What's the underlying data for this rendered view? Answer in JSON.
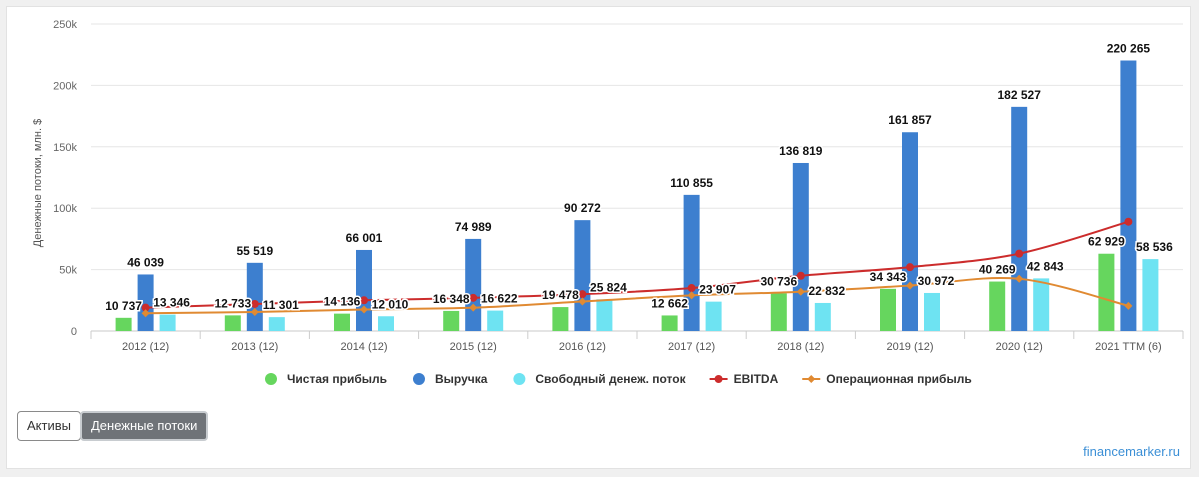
{
  "chart_data": {
    "type": "bar",
    "ylabel": "Денежные потоки, млн. $",
    "ylim": [
      0,
      250000
    ],
    "yticks": [
      {
        "value": 0,
        "label": "0"
      },
      {
        "value": 50000,
        "label": "50k"
      },
      {
        "value": 100000,
        "label": "100k"
      },
      {
        "value": 150000,
        "label": "150k"
      },
      {
        "value": 200000,
        "label": "200k"
      },
      {
        "value": 250000,
        "label": "250k"
      }
    ],
    "grid": true,
    "legend_position": "bottom",
    "categories": [
      "2012 (12)",
      "2013 (12)",
      "2014 (12)",
      "2015 (12)",
      "2016 (12)",
      "2017 (12)",
      "2018 (12)",
      "2019 (12)",
      "2020 (12)",
      "2021 TTM (6)"
    ],
    "series": [
      {
        "name": "Чистая прибыль",
        "kind": "bar",
        "color": "#66d65e",
        "values": [
          10737,
          12733,
          14136,
          16348,
          19478,
          12662,
          30736,
          34343,
          40269,
          62929
        ],
        "labels": [
          "10 737",
          "12 733",
          "14 136",
          "16 348",
          "19 478",
          "12 662",
          "30 736",
          "34 343",
          "40 269",
          "62 929"
        ]
      },
      {
        "name": "Выручка",
        "kind": "bar",
        "color": "#3d7fcf",
        "values": [
          46039,
          55519,
          66001,
          74989,
          90272,
          110855,
          136819,
          161857,
          182527,
          220265
        ],
        "labels": [
          "46 039",
          "55 519",
          "66 001",
          "74 989",
          "90 272",
          "110 855",
          "136 819",
          "161 857",
          "182 527",
          "220 265"
        ]
      },
      {
        "name": "Свободный денеж. поток",
        "kind": "bar",
        "color": "#6ee3f2",
        "values": [
          13346,
          11301,
          12010,
          16622,
          25824,
          23907,
          22832,
          30972,
          42843,
          58536
        ],
        "labels": [
          "13 346",
          "11 301",
          "12 010",
          "16 622",
          "25 824",
          "23 907",
          "22 832",
          "30 972",
          "42 843",
          "58 536"
        ]
      },
      {
        "name": "EBITDA",
        "kind": "line",
        "color": "#cc2c2c",
        "values": [
          19000,
          22000,
          25000,
          27000,
          30000,
          35000,
          45000,
          52000,
          63000,
          89000
        ]
      },
      {
        "name": "Операционная прибыль",
        "kind": "line",
        "color": "#e08a32",
        "values": [
          14500,
          15500,
          17500,
          19000,
          24000,
          29000,
          32000,
          37000,
          42500,
          20500
        ]
      }
    ]
  },
  "buttons": {
    "assets": "Активы",
    "cash_flows": "Денежные потоки"
  },
  "brand": "financemarker.ru"
}
